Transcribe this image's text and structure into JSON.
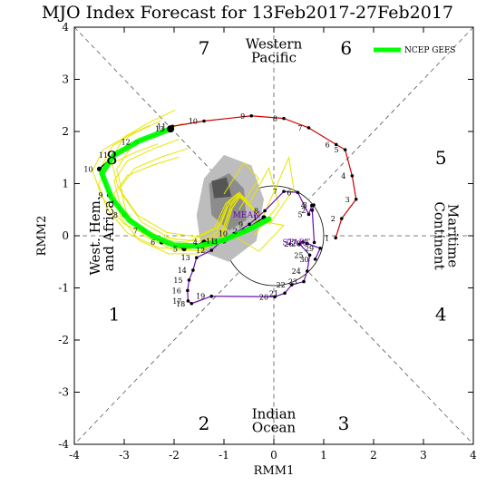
{
  "chart_data": {
    "type": "line",
    "title": "MJO Index Forecast for 13Feb2017-27Feb2017",
    "xlabel": "RMM1",
    "ylabel": "RMM2",
    "xlim": [
      -4,
      4
    ],
    "ylim": [
      -4,
      4
    ],
    "x_ticks": [
      "-4",
      "-3",
      "-2",
      "-1",
      "0",
      "1",
      "2",
      "3",
      "4"
    ],
    "y_ticks": [
      "-4",
      "-3",
      "-2",
      "-1",
      "0",
      "1",
      "2",
      "3",
      "4"
    ],
    "grid": false,
    "legend": {
      "position": "top-right",
      "entries": [
        {
          "label": "NCEP GEFS",
          "color": "#00ff00"
        }
      ]
    },
    "phase_numbers": [
      {
        "label": "1",
        "x": -3.2,
        "y": -1.5
      },
      {
        "label": "2",
        "x": -1.4,
        "y": -3.6
      },
      {
        "label": "3",
        "x": 1.4,
        "y": -3.6
      },
      {
        "label": "4",
        "x": 3.35,
        "y": -1.5
      },
      {
        "label": "5",
        "x": 3.35,
        "y": 1.5
      },
      {
        "label": "6",
        "x": 1.45,
        "y": 3.6
      },
      {
        "label": "7",
        "x": -1.4,
        "y": 3.6
      },
      {
        "label": "8",
        "x": -3.25,
        "y": 1.5
      }
    ],
    "region_labels": [
      {
        "lines": [
          "Western",
          "Pacific"
        ],
        "x": 0,
        "y": 3.55,
        "rotate": 0
      },
      {
        "lines": [
          "Indian",
          "Ocean"
        ],
        "x": 0,
        "y": -3.55,
        "rotate": 0
      },
      {
        "lines": [
          "West. Hem.",
          "and Africa"
        ],
        "x": -3.45,
        "y": 0,
        "rotate": -90
      },
      {
        "lines": [
          "Maritime",
          "Continent"
        ],
        "x": 3.45,
        "y": 0,
        "rotate": 90
      }
    ],
    "center_labels": [
      {
        "text": "START",
        "x": 0.45,
        "y": -0.18,
        "color": "#6a0dad"
      },
      {
        "text": "MEAN",
        "x": -0.55,
        "y": 0.35,
        "color": "#6a0dad"
      }
    ],
    "series": [
      {
        "name": "Observed (purple)",
        "color": "#6a0dad",
        "x": [
          0.81,
          0.77,
          0.8,
          0.76,
          0.7,
          0.48,
          0.2,
          -0.18,
          -0.49,
          -0.8,
          -1.05,
          -1.25,
          -1.55,
          -1.62,
          -1.7,
          -1.73,
          -1.72,
          -1.65,
          -1.25,
          0.02,
          0.22,
          0.36,
          0.6,
          0.67,
          0.72,
          0.52,
          0.58,
          0.67,
          0.93,
          0.83
        ],
        "y": [
          -0.13,
          0.49,
          0.59,
          0.58,
          0.41,
          0.83,
          0.85,
          0.48,
          0.22,
          0.04,
          -0.1,
          -0.28,
          -0.42,
          -0.66,
          -0.85,
          -1.05,
          -1.25,
          -1.3,
          -1.16,
          -1.17,
          -1.1,
          -0.94,
          -0.88,
          -0.68,
          -0.37,
          -0.16,
          -0.12,
          -0.15,
          -0.24,
          -0.45
        ],
        "labels": [
          "1",
          "2",
          "3",
          "4",
          "5",
          "6",
          "7",
          "8",
          "9",
          "10",
          "11",
          "12",
          "13",
          "14",
          "15",
          "16",
          "17",
          "18",
          "19",
          "20",
          "21",
          "22",
          "23",
          "24",
          "25",
          "26",
          "27",
          "28",
          "29",
          "30"
        ]
      },
      {
        "name": "Observed (red)",
        "color": "#cc0000",
        "x": [
          1.24,
          1.36,
          1.65,
          1.57,
          1.43,
          1.25,
          0.7,
          0.2,
          -0.45,
          -1.4,
          -2.03
        ],
        "y": [
          -0.04,
          0.33,
          0.7,
          1.15,
          1.65,
          1.75,
          2.07,
          2.25,
          2.3,
          2.2,
          2.1
        ],
        "labels": [
          "1",
          "2",
          "3",
          "4",
          "5",
          "6",
          "7",
          "8",
          "9",
          "10",
          "11"
        ]
      },
      {
        "name": "Forecast days",
        "color": "#000000",
        "x": [
          -2.07,
          -2.75,
          -3.2,
          -3.5,
          -3.3,
          -3.0,
          -2.6,
          -2.25,
          -1.8,
          -1.4,
          -1.0,
          -0.6,
          -0.2
        ],
        "y": [
          2.05,
          1.8,
          1.55,
          1.28,
          0.78,
          0.4,
          0.1,
          -0.12,
          -0.25,
          -0.12,
          -0.1,
          0.1,
          0.35
        ],
        "labels": [
          "13",
          "12",
          "11",
          "10",
          "9",
          "8",
          "7",
          "6",
          "5",
          "4",
          "3",
          "2",
          "1"
        ]
      },
      {
        "name": "NCEP GEFS",
        "color": "#00ff00",
        "x": [
          -2.07,
          -2.7,
          -3.2,
          -3.45,
          -3.25,
          -2.9,
          -2.45,
          -2.0,
          -1.5,
          -1.0,
          -0.5,
          -0.1
        ],
        "y": [
          2.05,
          1.82,
          1.55,
          1.2,
          0.72,
          0.3,
          0.0,
          -0.18,
          -0.2,
          -0.08,
          0.12,
          0.32
        ]
      }
    ]
  }
}
